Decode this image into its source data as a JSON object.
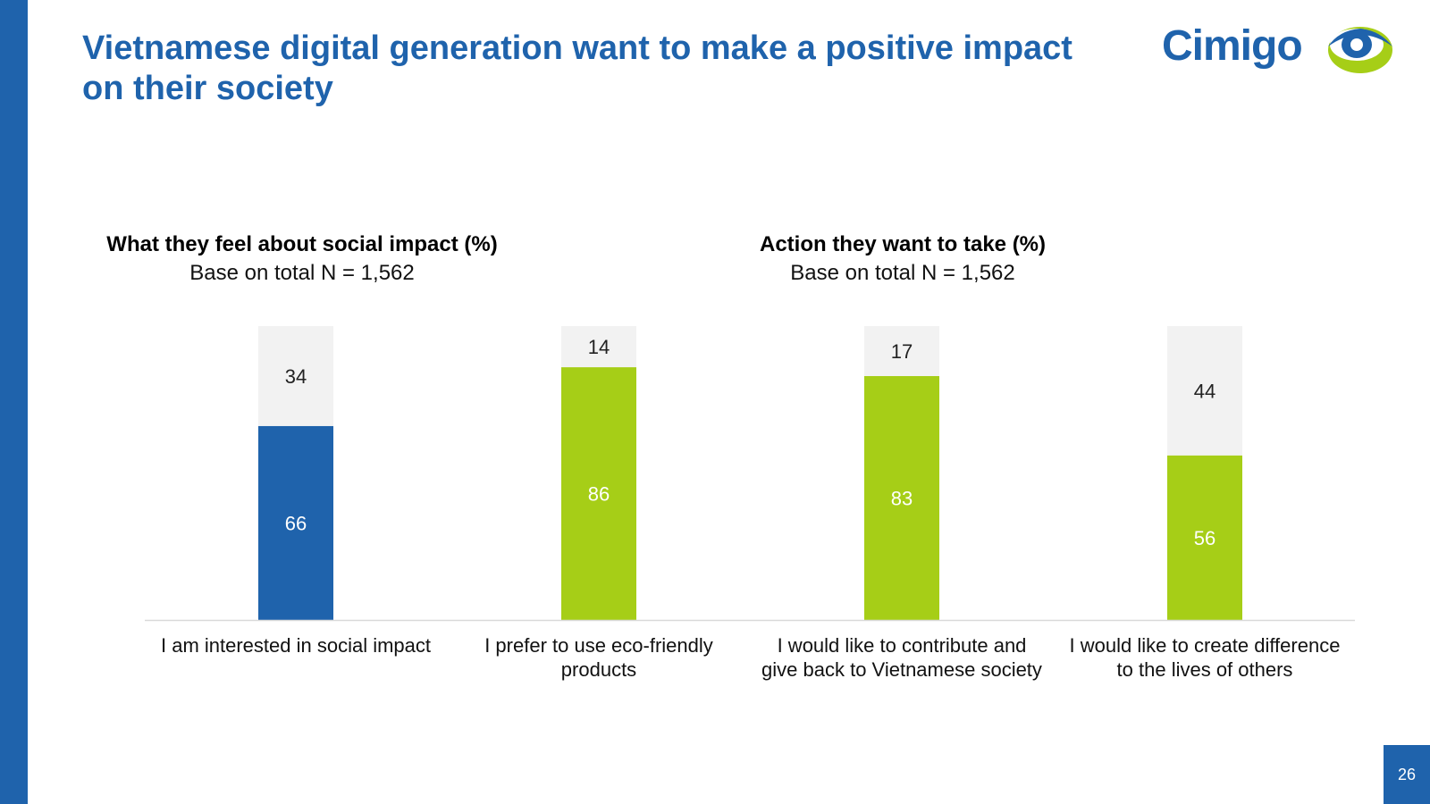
{
  "slide": {
    "title_line1": "Vietnamese digital generation want to make a positive impact",
    "title_line2": "on their society",
    "page_number": "26",
    "logo_text": "Cimigo"
  },
  "colors": {
    "brand_blue": "#1F63AC",
    "green": "#A6CE17",
    "remainder_gray": "#F2F2F2",
    "axis": "#D9D9D9"
  },
  "headers": {
    "left": {
      "title": "What they feel about social impact (%)",
      "subtitle": "Base on total N = 1,562"
    },
    "right": {
      "title": "Action they want to take (%)",
      "subtitle": "Base on total N = 1,562"
    }
  },
  "chart_data": {
    "type": "bar",
    "stacked": true,
    "ylim": [
      0,
      100
    ],
    "grid": false,
    "categories": [
      [
        "I am interested in social impact"
      ],
      [
        "I prefer to use eco-friendly",
        "products"
      ],
      [
        "I would like to contribute and",
        "give back to Vietnamese society"
      ],
      [
        "I would like to create difference",
        "to the lives of others"
      ]
    ],
    "series": [
      {
        "name": "Agree",
        "values": [
          66,
          86,
          83,
          56
        ],
        "colors": [
          "#1F63AC",
          "#A6CE17",
          "#A6CE17",
          "#A6CE17"
        ]
      },
      {
        "name": "Others",
        "values": [
          34,
          14,
          17,
          44
        ],
        "colors": [
          "#F2F2F2",
          "#F2F2F2",
          "#F2F2F2",
          "#F2F2F2"
        ]
      }
    ]
  }
}
